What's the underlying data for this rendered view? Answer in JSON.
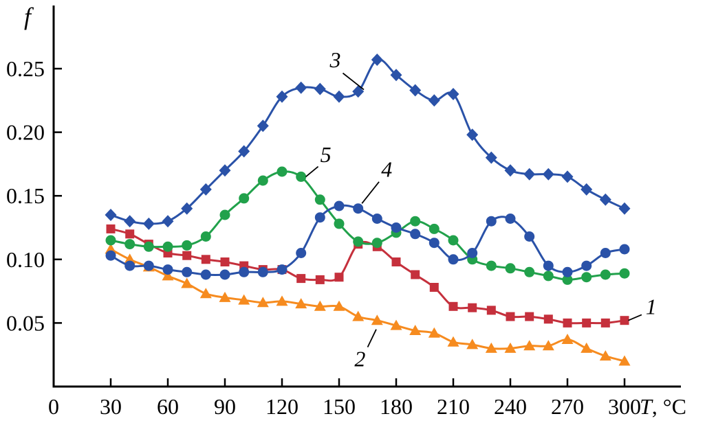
{
  "page": {
    "background": "#ffffff"
  },
  "chart_data": {
    "type": "line",
    "title": "",
    "xlabel": "T, °C",
    "ylabel": "f",
    "grid": false,
    "legend": "inline-curve-number-labels",
    "xlim": [
      0,
      330
    ],
    "ylim": [
      0,
      0.3
    ],
    "x_ticks": [
      0,
      30,
      60,
      90,
      120,
      150,
      180,
      210,
      240,
      270,
      300
    ],
    "y_ticks": [
      0.05,
      0.1,
      0.15,
      0.2,
      0.25
    ],
    "y_tick_labels": [
      "0.05",
      "0.10",
      "0.15",
      "0.20",
      "0.25"
    ],
    "x": [
      30,
      40,
      50,
      60,
      70,
      80,
      90,
      100,
      110,
      120,
      130,
      140,
      150,
      160,
      170,
      180,
      190,
      200,
      210,
      220,
      230,
      240,
      250,
      260,
      270,
      280,
      290,
      300
    ],
    "series": [
      {
        "name": "1",
        "marker": "square",
        "color": "#c5303c",
        "values": [
          0.124,
          0.12,
          0.112,
          0.105,
          0.103,
          0.1,
          0.098,
          0.095,
          0.092,
          0.092,
          0.085,
          0.084,
          0.086,
          0.112,
          0.11,
          0.098,
          0.088,
          0.078,
          0.063,
          0.062,
          0.06,
          0.055,
          0.055,
          0.053,
          0.05,
          0.05,
          0.05,
          0.052
        ]
      },
      {
        "name": "2",
        "marker": "triangle",
        "color": "#f68b1f",
        "values": [
          0.108,
          0.1,
          0.094,
          0.087,
          0.081,
          0.073,
          0.07,
          0.068,
          0.066,
          0.067,
          0.065,
          0.063,
          0.063,
          0.055,
          0.052,
          0.048,
          0.044,
          0.042,
          0.035,
          0.033,
          0.03,
          0.03,
          0.032,
          0.032,
          0.037,
          0.03,
          0.024,
          0.02
        ]
      },
      {
        "name": "5",
        "marker": "circle",
        "color": "#21a14b",
        "values": [
          0.115,
          0.112,
          0.11,
          0.11,
          0.111,
          0.118,
          0.135,
          0.148,
          0.162,
          0.169,
          0.165,
          0.147,
          0.128,
          0.114,
          0.113,
          0.121,
          0.13,
          0.124,
          0.115,
          0.1,
          0.095,
          0.093,
          0.09,
          0.087,
          0.084,
          0.086,
          0.088,
          0.089
        ]
      },
      {
        "name": "4",
        "marker": "circle",
        "color": "#2a52a8",
        "values": [
          0.103,
          0.095,
          0.095,
          0.092,
          0.09,
          0.088,
          0.088,
          0.09,
          0.09,
          0.092,
          0.105,
          0.133,
          0.142,
          0.14,
          0.132,
          0.125,
          0.12,
          0.113,
          0.1,
          0.105,
          0.13,
          0.132,
          0.118,
          0.095,
          0.09,
          0.095,
          0.105,
          0.108
        ]
      },
      {
        "name": "3",
        "marker": "diamond",
        "color": "#2a52a8",
        "values": [
          0.135,
          0.13,
          0.128,
          0.13,
          0.14,
          0.155,
          0.17,
          0.185,
          0.205,
          0.228,
          0.235,
          0.234,
          0.228,
          0.232,
          0.257,
          0.245,
          0.233,
          0.225,
          0.23,
          0.198,
          0.18,
          0.17,
          0.167,
          0.167,
          0.165,
          0.155,
          0.147,
          0.14
        ]
      }
    ],
    "annotations": [
      {
        "label": "3",
        "x": 148,
        "y": 0.257,
        "line": {
          "x1": 152,
          "y1": 0.2465,
          "x2": 163,
          "y2": 0.2335
        }
      },
      {
        "label": "5",
        "x": 143,
        "y": 0.1825,
        "line": {
          "x1": 139,
          "y1": 0.173,
          "x2": 132.5,
          "y2": 0.165
        }
      },
      {
        "label": "4",
        "x": 175,
        "y": 0.171,
        "line": {
          "x1": 171,
          "y1": 0.161,
          "x2": 162,
          "y2": 0.144
        }
      },
      {
        "label": "1",
        "x": 314,
        "y": 0.063,
        "line": {
          "x1": 309,
          "y1": 0.0565,
          "x2": 302,
          "y2": 0.052
        }
      },
      {
        "label": "2",
        "x": 161,
        "y": 0.022,
        "line": {
          "x1": 165,
          "y1": 0.031,
          "x2": 169.5,
          "y2": 0.045
        }
      }
    ]
  }
}
